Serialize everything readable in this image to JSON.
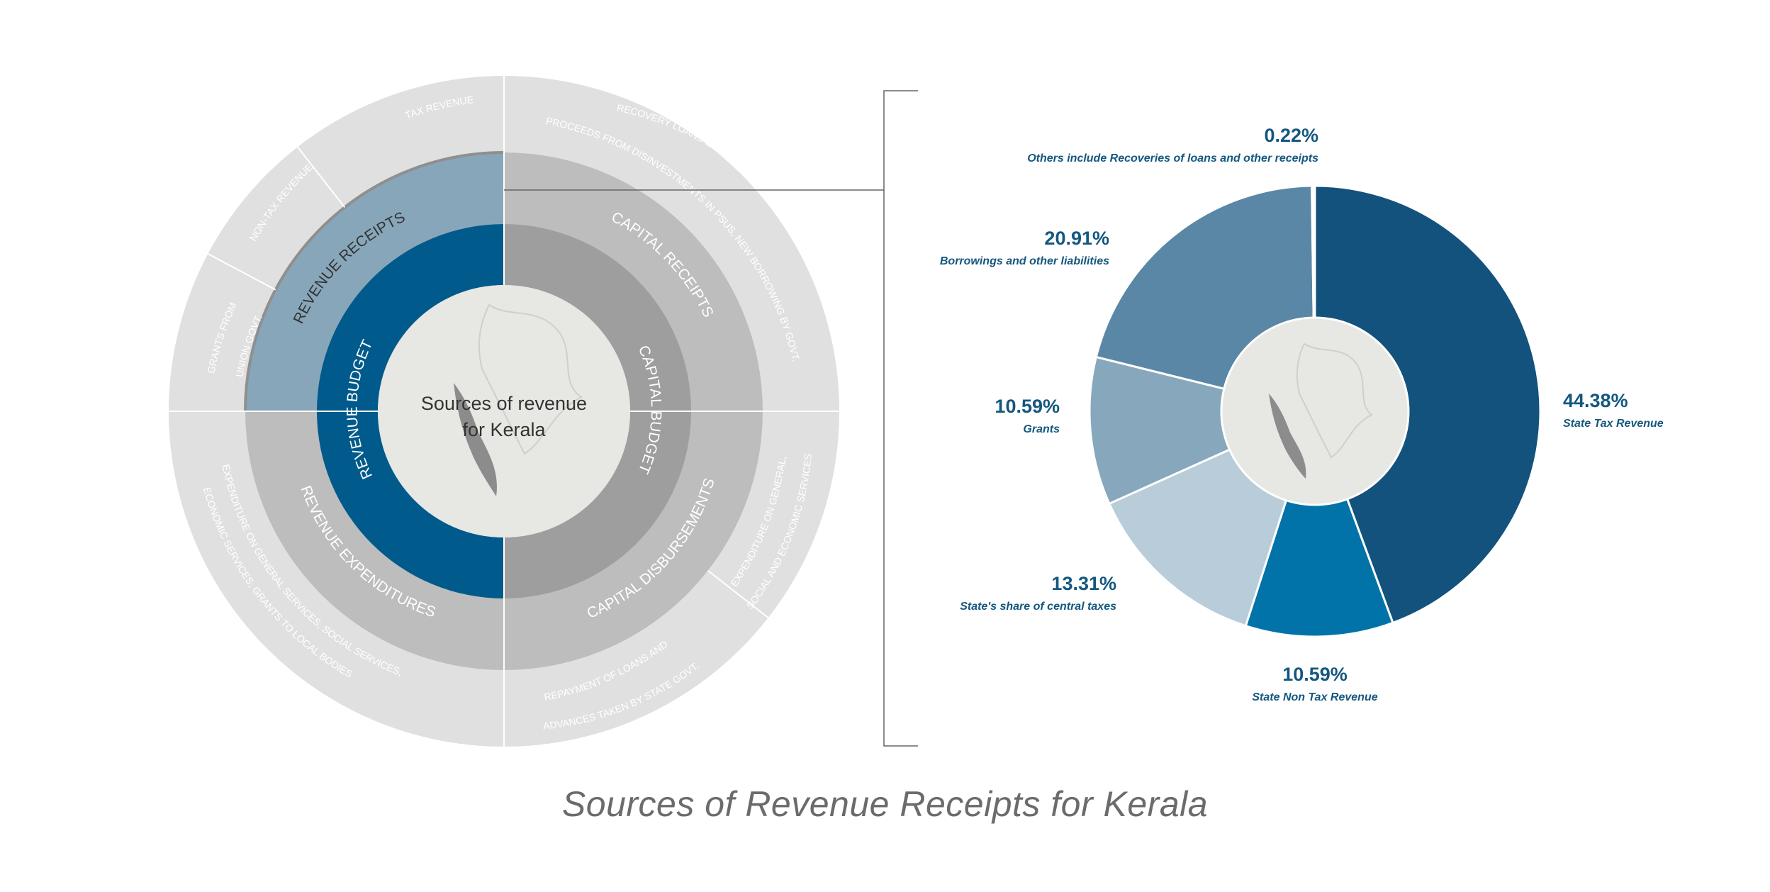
{
  "title": "Sources of Revenue Receipts for Kerala",
  "colors": {
    "outer_ring": "#e0e0e0",
    "middle_ring": "#bdbdbd",
    "revenue_receipts_highlight": "#87a6ba",
    "inner_ring_capital": "#9e9e9e",
    "inner_ring_revenue": "#005a8b",
    "center": "#e7e7e3",
    "map": "#8c8c8c"
  },
  "sunburst": {
    "center_label_line1": "Sources of revenue",
    "center_label_line2": "for Kerala",
    "inner_ring": {
      "revenue_budget": "REVENUE  BUDGET",
      "capital_budget": "CAPITAL  BUDGET"
    },
    "middle_ring": {
      "revenue_receipts": "REVENUE RECEIPTS",
      "capital_receipts": "CAPITAL RECEIPTS",
      "capital_disbursements": "CAPITAL  DISBURSEMENTS",
      "revenue_expenditures": "REVENUE  EXPENDITURES"
    },
    "outer_ring": {
      "tax_revenue": "TAX REVENUE",
      "non_tax_revenue": "NON-TAX REVENUE",
      "grants_line1": "GRANTS FROM",
      "grants_line2": "UNION GOVT.",
      "recovery_line1": "RECOVERY LOANS & ADVANCES GIVEN BY STATE GOVT.",
      "recovery_line2": "PROCEEDS FROM DISINVESTMENTS IN PSUs, NEW BORROWING BY GOVT.",
      "capex_line1": "EXPENDITURE ON GENERAL,",
      "capex_line2": "SOCIAL AND ECONOMIC SERVICES",
      "repay_line1": "REPAYMENT OF LOANS AND",
      "repay_line2": "ADVANCES TAKEN BY STATE GOVT.",
      "revex_line1": "EXPENDITURE ON GENERAL SERVICES, SOCIAL SERVICES,",
      "revex_line2": "ECONOMIC SERVICES, GRANTS TO LOCAL BODIES"
    }
  },
  "chart_data": {
    "type": "pie",
    "donut": true,
    "unit": "%",
    "slices": [
      {
        "label": "State Tax Revenue",
        "value": 44.38,
        "value_label": "44.38%",
        "color": "#13527c"
      },
      {
        "label": "State Non Tax Revenue",
        "value": 10.59,
        "value_label": "10.59%",
        "color": "#0173a8"
      },
      {
        "label": "State's share of central taxes",
        "value": 13.31,
        "value_label": "13.31%",
        "color": "#b8ccd9"
      },
      {
        "label": "Grants",
        "value": 10.59,
        "value_label": "10.59%",
        "color": "#87a7bc"
      },
      {
        "label": "Borrowings and other liabilities",
        "value": 20.91,
        "value_label": "20.91%",
        "color": "#5a87a6"
      },
      {
        "label": "Others include Recoveries of loans and other receipts",
        "value": 0.22,
        "value_label": "0.22%",
        "color": "#ffffff"
      }
    ]
  }
}
